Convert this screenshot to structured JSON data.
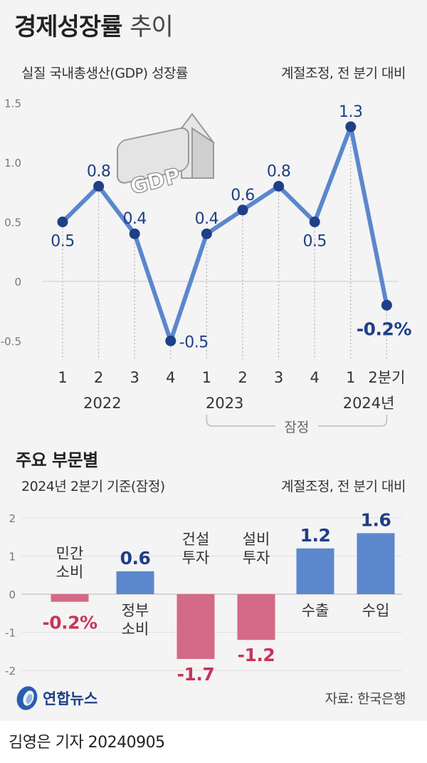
{
  "header": {
    "title": "경제성장률",
    "title_suffix": "추이",
    "subtitle": "실질 국내총생산(GDP) 성장률",
    "note": "계절조정, 전 분기 대비"
  },
  "chart_data": [
    {
      "type": "line",
      "title": "경제성장률 추이",
      "subtitle": "실질 국내총생산(GDP) 성장률",
      "note": "계절조정, 전 분기 대비",
      "categories": [
        "1",
        "2",
        "3",
        "4",
        "1",
        "2",
        "3",
        "4",
        "1",
        "2분기"
      ],
      "year_labels": [
        "2022",
        "2023",
        "2024년"
      ],
      "values": [
        0.5,
        0.8,
        0.4,
        -0.5,
        0.4,
        0.6,
        0.8,
        0.5,
        1.3,
        -0.2
      ],
      "value_labels": [
        "0.5",
        "0.8",
        "0.4",
        "-0.5",
        "0.4",
        "0.6",
        "0.8",
        "0.5",
        "1.3",
        "-0.2%"
      ],
      "yticks": [
        "1.5",
        "1.0",
        "0.5",
        "0",
        "-0.5"
      ],
      "ylim": [
        -0.5,
        1.5
      ],
      "bracket_label": "잠정",
      "illustration_text": "GDP",
      "color": "#5b87cc",
      "highlight_color": "#1f3f86"
    },
    {
      "type": "bar",
      "title": "주요 부문별",
      "subtitle": "2024년 2분기 기준(잠정)",
      "note": "계절조정, 전 분기 대비",
      "categories": [
        "민간 소비",
        "정부 소비",
        "건설 투자",
        "설비 투자",
        "수출",
        "수입"
      ],
      "values": [
        -0.2,
        0.6,
        -1.7,
        -1.2,
        1.2,
        1.6
      ],
      "value_labels": [
        "-0.2%",
        "0.6",
        "-1.7",
        "-1.2",
        "1.2",
        "1.6"
      ],
      "yticks": [
        "2",
        "1",
        "0",
        "-1",
        "-2"
      ],
      "ylim": [
        -2,
        2
      ],
      "positive_color": "#5b87cc",
      "negative_color": "#d36a86",
      "positive_label_color": "#1f3f86",
      "negative_label_color": "#c8345a"
    }
  ],
  "section2": {
    "title": "주요 부문별",
    "subtitle": "2024년 2분기 기준(잠정)",
    "note": "계절조정, 전 분기 대비"
  },
  "source": "자료: 한국은행",
  "logo_text": "연합뉴스",
  "byline": "김영은 기자  20240905"
}
